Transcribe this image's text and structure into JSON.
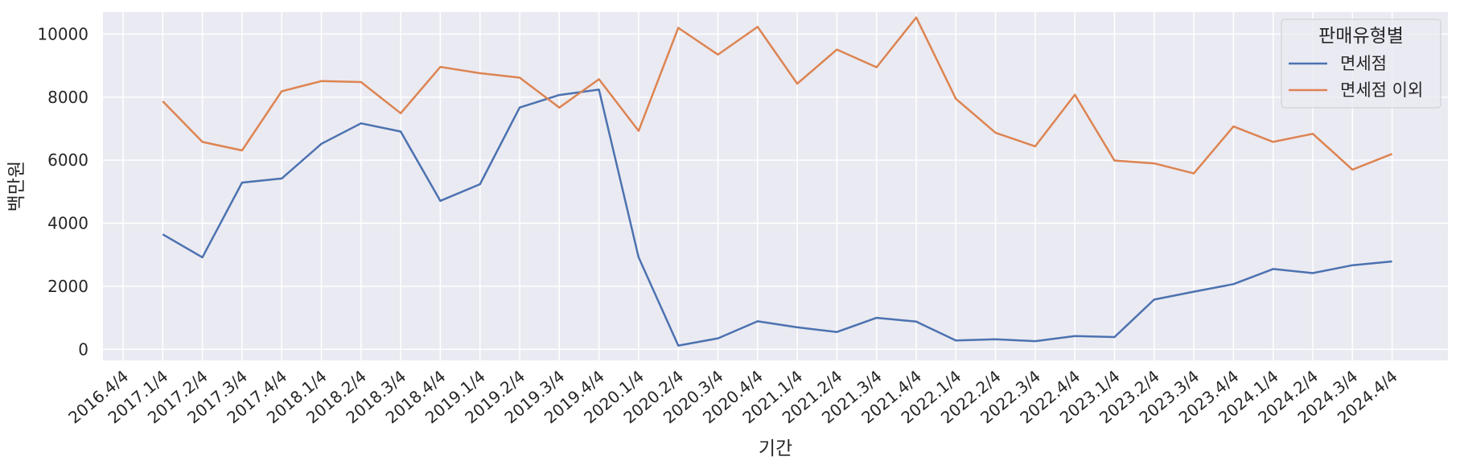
{
  "chart_data": {
    "type": "line",
    "xlabel": "기간",
    "ylabel": "백만원",
    "ylim": [
      -350,
      10700
    ],
    "yticks": [
      0,
      2000,
      4000,
      6000,
      8000,
      10000
    ],
    "grid": true,
    "legend_position": "top-right",
    "legend_title": "판매유형별",
    "categories": [
      "2016.4/4",
      "2017.1/4",
      "2017.2/4",
      "2017.3/4",
      "2017.4/4",
      "2018.1/4",
      "2018.2/4",
      "2018.3/4",
      "2018.4/4",
      "2019.1/4",
      "2019.2/4",
      "2019.3/4",
      "2019.4/4",
      "2020.1/4",
      "2020.2/4",
      "2020.3/4",
      "2020.4/4",
      "2021.1/4",
      "2021.2/4",
      "2021.3/4",
      "2021.4/4",
      "2022.1/4",
      "2022.2/4",
      "2022.3/4",
      "2022.4/4",
      "2023.1/4",
      "2023.2/4",
      "2023.3/4",
      "2023.4/4",
      "2024.1/4",
      "2024.2/4",
      "2024.3/4",
      "2024.4/4"
    ],
    "series": [
      {
        "name": "면세점",
        "color": "#4c72b0",
        "x": [
          "2017.1/4",
          "2017.2/4",
          "2017.3/4",
          "2017.4/4",
          "2018.1/4",
          "2018.2/4",
          "2018.3/4",
          "2018.4/4",
          "2019.1/4",
          "2019.2/4",
          "2019.3/4",
          "2019.4/4",
          "2020.1/4",
          "2020.2/4",
          "2020.3/4",
          "2020.4/4",
          "2021.1/4",
          "2021.2/4",
          "2021.3/4",
          "2021.4/4",
          "2022.1/4",
          "2022.2/4",
          "2022.3/4",
          "2022.4/4",
          "2023.1/4",
          "2023.2/4",
          "2023.3/4",
          "2023.4/4",
          "2024.1/4",
          "2024.2/4",
          "2024.3/4",
          "2024.4/4"
        ],
        "values": [
          3650,
          2920,
          5290,
          5420,
          6520,
          7170,
          6910,
          4710,
          5240,
          7670,
          8070,
          8240,
          2920,
          120,
          350,
          890,
          700,
          550,
          1000,
          880,
          280,
          320,
          260,
          420,
          390,
          1580,
          1830,
          2070,
          2550,
          2420,
          2670,
          2790
        ]
      },
      {
        "name": "면세점 이외",
        "color": "#dd8452",
        "x": [
          "2017.1/4",
          "2017.2/4",
          "2017.3/4",
          "2017.4/4",
          "2018.1/4",
          "2018.2/4",
          "2018.3/4",
          "2018.4/4",
          "2019.1/4",
          "2019.2/4",
          "2019.3/4",
          "2019.4/4",
          "2020.1/4",
          "2020.2/4",
          "2020.3/4",
          "2020.4/4",
          "2021.1/4",
          "2021.2/4",
          "2021.3/4",
          "2021.4/4",
          "2022.1/4",
          "2022.2/4",
          "2022.3/4",
          "2022.4/4",
          "2023.1/4",
          "2023.2/4",
          "2023.3/4",
          "2023.4/4",
          "2024.1/4",
          "2024.2/4",
          "2024.3/4",
          "2024.4/4"
        ],
        "values": [
          7870,
          6580,
          6310,
          8190,
          8510,
          8480,
          7490,
          8960,
          8760,
          8620,
          7670,
          8570,
          6930,
          10200,
          9350,
          10230,
          8430,
          9510,
          8950,
          10530,
          7950,
          6870,
          6440,
          8080,
          5990,
          5900,
          5580,
          7070,
          6580,
          6840,
          5700,
          6200
        ]
      }
    ]
  }
}
